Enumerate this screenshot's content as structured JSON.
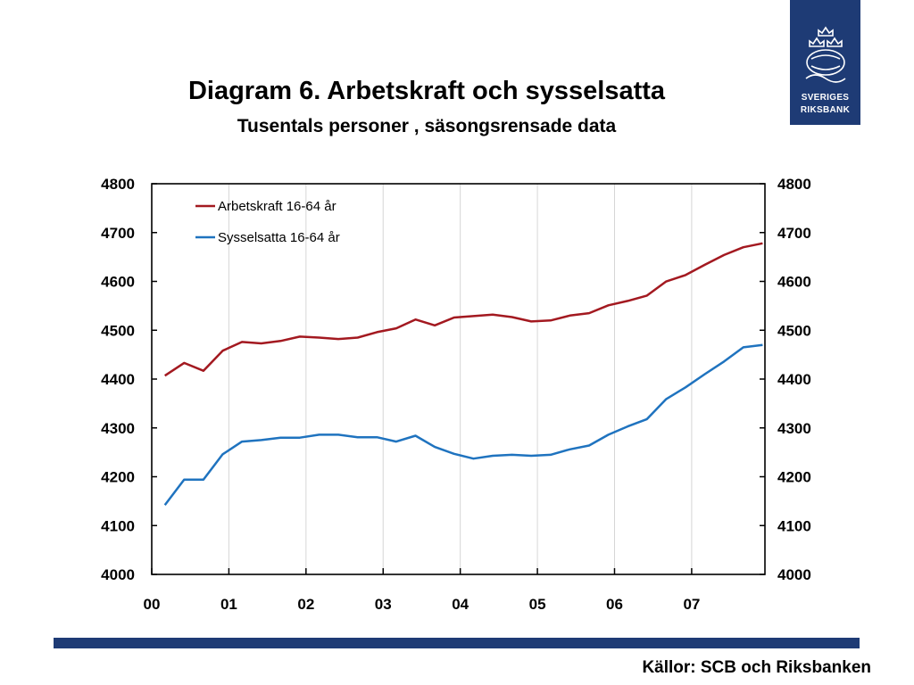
{
  "logo": {
    "line1": "SVERIGES",
    "line2": "RIKSBANK",
    "color": "#1e3b75"
  },
  "footer": {
    "source": "Källor: SCB och Riksbanken",
    "bar_color": "#1e3b75"
  },
  "chart_data": {
    "type": "line",
    "title": "Diagram 6. Arbetskraft och sysselsatta",
    "subtitle": "Tusentals personer , säsongsrensade data",
    "xlabel": "",
    "ylabel": "",
    "ylim": [
      4000,
      4800
    ],
    "yticks": [
      4000,
      4100,
      4200,
      4300,
      4400,
      4500,
      4600,
      4700,
      4800
    ],
    "xlim": [
      2000.0,
      2007.95
    ],
    "xtick_values": [
      2000,
      2001,
      2002,
      2003,
      2004,
      2005,
      2006,
      2007
    ],
    "xtick_labels": [
      "00",
      "01",
      "02",
      "03",
      "04",
      "05",
      "06",
      "07"
    ],
    "grid": "vertical",
    "secondary_y_axis": true,
    "legend_position": "top-left",
    "x": [
      2000.17,
      2000.42,
      2000.67,
      2000.92,
      2001.17,
      2001.42,
      2001.67,
      2001.92,
      2002.17,
      2002.42,
      2002.67,
      2002.92,
      2003.17,
      2003.42,
      2003.67,
      2003.92,
      2004.17,
      2004.42,
      2004.67,
      2004.92,
      2005.17,
      2005.42,
      2005.67,
      2005.92,
      2006.17,
      2006.42,
      2006.67,
      2006.92,
      2007.17,
      2007.42,
      2007.67,
      2007.92
    ],
    "series": [
      {
        "name": "Arbetskraft 16-64 år",
        "color": "#a31920",
        "values": [
          4407,
          4433,
          4417,
          4458,
          4476,
          4473,
          4478,
          4487,
          4485,
          4482,
          4485,
          4496,
          4504,
          4522,
          4510,
          4526,
          4529,
          4532,
          4527,
          4518,
          4520,
          4530,
          4535,
          4551,
          4560,
          4571,
          4600,
          4613,
          4634,
          4654,
          4670,
          4678
        ]
      },
      {
        "name": "Sysselsatta 16-64 år",
        "color": "#1f73bf",
        "values": [
          4142,
          4194,
          4194,
          4246,
          4272,
          4275,
          4280,
          4280,
          4286,
          4286,
          4281,
          4281,
          4272,
          4284,
          4261,
          4247,
          4237,
          4243,
          4245,
          4243,
          4245,
          4256,
          4264,
          4286,
          4303,
          4318,
          4359,
          4383,
          4410,
          4436,
          4465,
          4470
        ]
      }
    ]
  }
}
